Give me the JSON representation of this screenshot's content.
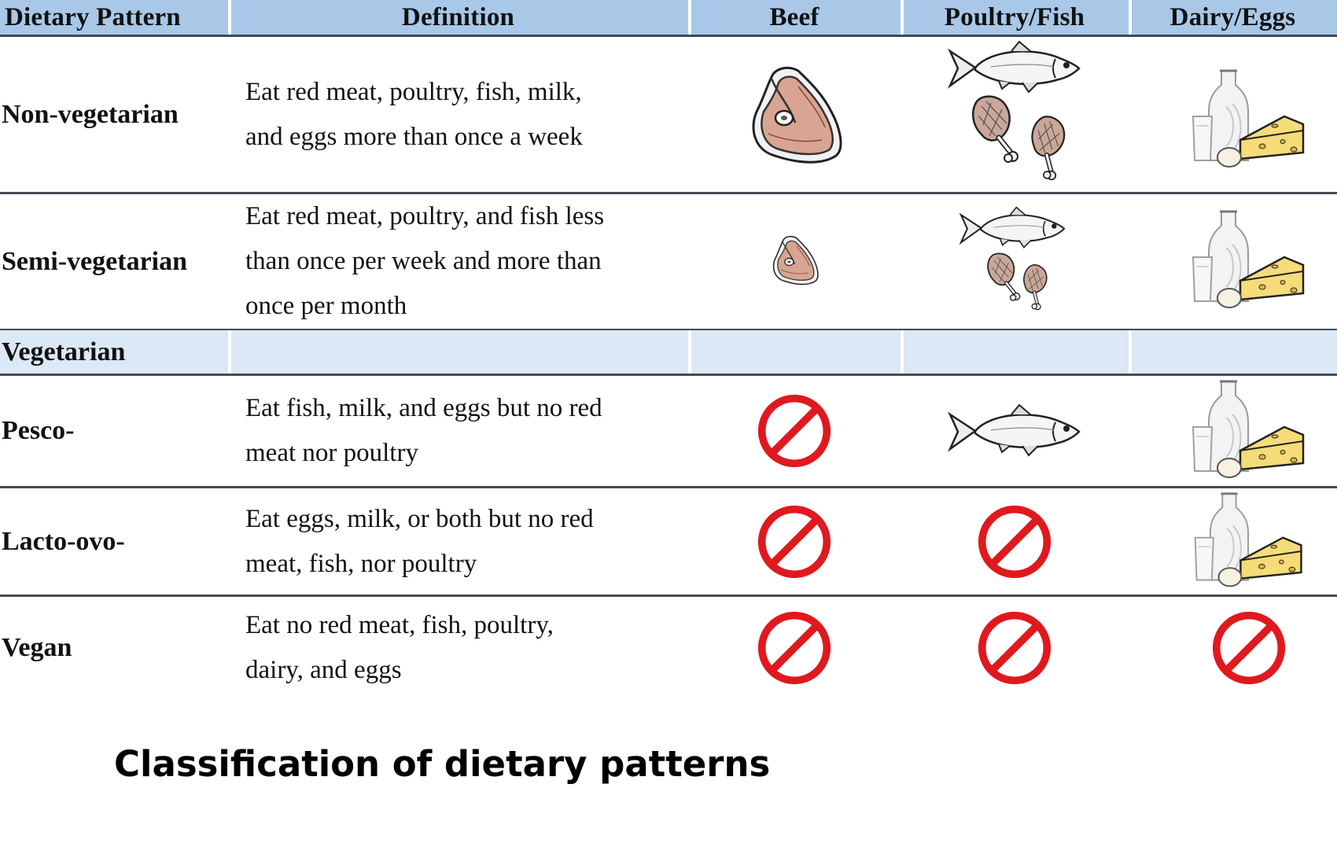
{
  "table": {
    "headers": [
      "Dietary Pattern",
      "Definition",
      "Beef",
      "Poultry/Fish",
      "Dairy/Eggs"
    ],
    "rows": [
      {
        "label": "Non-vegetarian",
        "definition": [
          "Eat red meat, poultry, fish, milk,",
          "and eggs more than once a week"
        ],
        "beef": "steak-icon",
        "poultry_fish": "fish-and-drumsticks-icon",
        "dairy_eggs": "milk-cheese-egg-icon"
      },
      {
        "label": "Semi-vegetarian",
        "definition": [
          "Eat red meat, poultry, and fish less",
          "than once per week and more than",
          "once per month"
        ],
        "beef": "small-steak-icon",
        "poultry_fish": "small-fish-and-drumsticks-icon",
        "dairy_eggs": "milk-cheese-egg-icon"
      },
      {
        "label": "Vegetarian",
        "definition": [],
        "is_group_header": true
      },
      {
        "label": "Pesco-",
        "definition": [
          "Eat fish, milk, and eggs but no red",
          "meat nor poultry"
        ],
        "beef": "prohibited-icon",
        "poultry_fish": "fish-icon",
        "dairy_eggs": "milk-cheese-egg-icon"
      },
      {
        "label": "Lacto-ovo-",
        "definition": [
          "Eat eggs, milk, or both but no red",
          "meat, fish, nor poultry"
        ],
        "beef": "prohibited-icon",
        "poultry_fish": "prohibited-icon",
        "dairy_eggs": "milk-cheese-egg-icon"
      },
      {
        "label": "Vegan",
        "definition": [
          "Eat no red meat, fish, poultry,",
          "dairy, and eggs"
        ],
        "beef": "prohibited-icon",
        "poultry_fish": "prohibited-icon",
        "dairy_eggs": "prohibited-icon"
      }
    ]
  },
  "caption": "Classification of dietary patterns",
  "colors": {
    "header_bg": "#a9c8e8",
    "group_row_bg": "#dbe8f5",
    "rule": "#444c55",
    "prohibited_red": "#e0191e",
    "meat": "#d9a492"
  }
}
